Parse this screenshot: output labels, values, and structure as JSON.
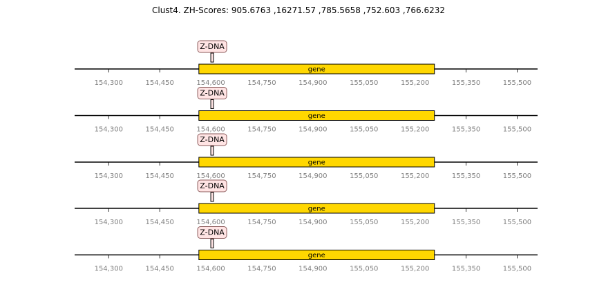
{
  "title": "Clust4. ZH-Scores: 905.6763 ,16271.57 ,785.5658 ,752.603 ,766.6232",
  "colors": {
    "axis_line": "#000000",
    "gene_fill": "#ffd700",
    "gene_stroke": "#000000",
    "feature_fill": "#ffe4e4",
    "feature_stroke": "#8b5a5a",
    "tick_label": "#808080"
  },
  "chart_data": {
    "type": "gene-track",
    "axis": {
      "range": [
        154200,
        155560
      ],
      "ticks": [
        154300,
        154450,
        154600,
        154750,
        154900,
        155050,
        155200,
        155350,
        155500
      ],
      "tick_labels": [
        "154,300",
        "154,450",
        "154,600",
        "154,750",
        "154,900",
        "155,050",
        "155,200",
        "155,350",
        "155,500"
      ]
    },
    "tracks": [
      {
        "gene": {
          "label": "gene",
          "start": 154565,
          "end": 155257
        },
        "feature": {
          "label": "Z-DNA",
          "start": 154600,
          "end": 154608
        }
      },
      {
        "gene": {
          "label": "gene",
          "start": 154565,
          "end": 155257
        },
        "feature": {
          "label": "Z-DNA",
          "start": 154600,
          "end": 154608
        }
      },
      {
        "gene": {
          "label": "gene",
          "start": 154565,
          "end": 155257
        },
        "feature": {
          "label": "Z-DNA",
          "start": 154600,
          "end": 154608
        }
      },
      {
        "gene": {
          "label": "gene",
          "start": 154565,
          "end": 155257
        },
        "feature": {
          "label": "Z-DNA",
          "start": 154600,
          "end": 154608
        }
      },
      {
        "gene": {
          "label": "gene",
          "start": 154565,
          "end": 155257
        },
        "feature": {
          "label": "Z-DNA",
          "start": 154600,
          "end": 154608
        }
      }
    ]
  }
}
